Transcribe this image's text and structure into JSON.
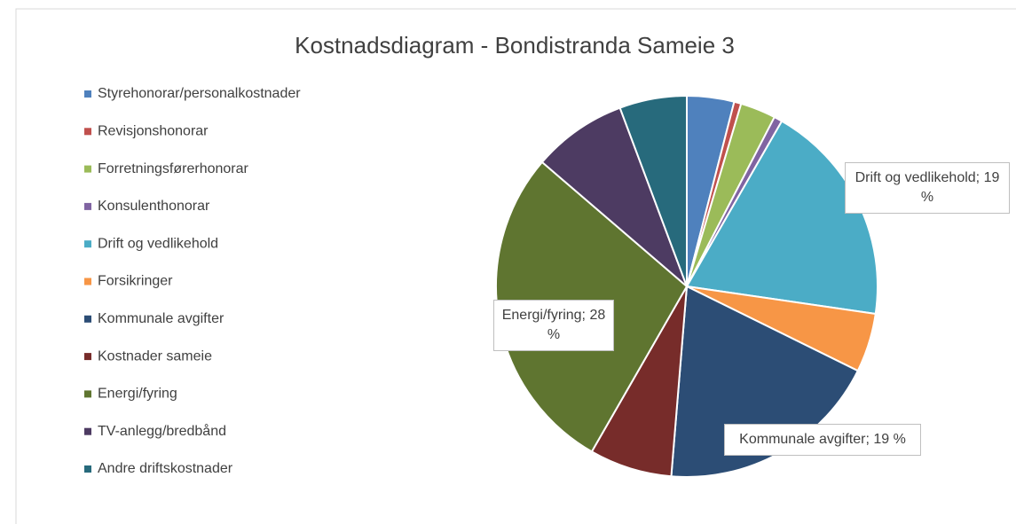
{
  "chart_data": {
    "type": "pie",
    "title": "Kostnadsdiagram - Bondistranda Sameie 3",
    "categories": [
      "Styrehonorar/personalkostnader",
      "Revisjonshonorar",
      "Forretningsførerhonorar",
      "Konsulenthonorar",
      "Drift og vedlikehold",
      "Forsikringer",
      "Kommunale avgifter",
      "Kostnader sameie",
      "Energi/fyring",
      "TV-anlegg/bredbånd",
      "Andre driftskostnader"
    ],
    "values": [
      4,
      0.6,
      3,
      0.7,
      19,
      5,
      19,
      7,
      28,
      8,
      5.7
    ],
    "value_labels": [
      null,
      null,
      null,
      null,
      "Drift og vedlikehold; 19 %",
      null,
      "Kommunale avgifter; 19 %",
      null,
      "Energi/fyring; 28 %",
      null,
      null
    ],
    "colors": [
      "#4f81bd",
      "#c0504d",
      "#9bbb59",
      "#8064a2",
      "#4bacc6",
      "#f79646",
      "#2c4d75",
      "#772c2a",
      "#5f7530",
      "#4d3b62",
      "#276a7c"
    ],
    "legend": "left"
  }
}
